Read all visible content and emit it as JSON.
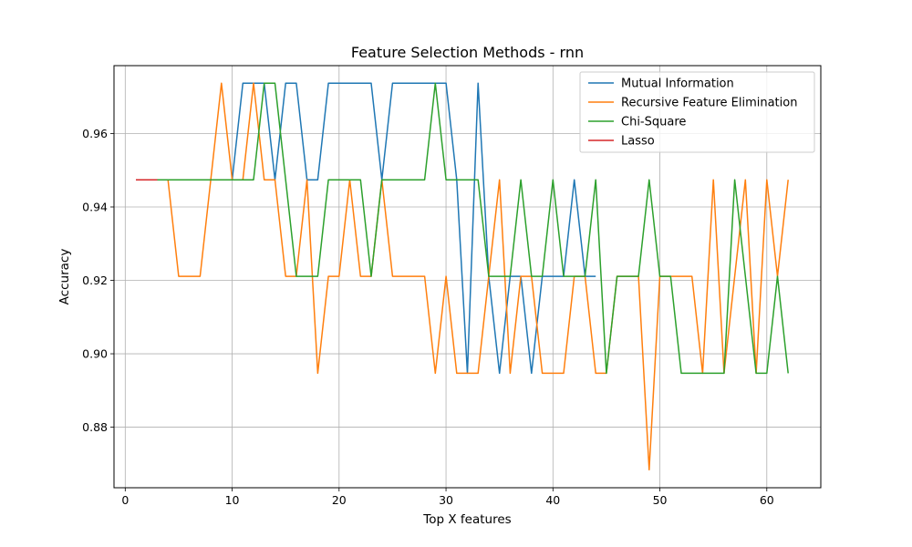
{
  "chart_data": {
    "type": "line",
    "title": "Feature Selection Methods - rnn",
    "xlabel": "Top X features",
    "ylabel": "Accuracy",
    "xlim": [
      -1.05,
      65.05
    ],
    "ylim": [
      0.8635,
      0.9785
    ],
    "xticks": [
      0,
      10,
      20,
      30,
      40,
      50,
      60
    ],
    "xtick_labels": [
      "0",
      "10",
      "20",
      "30",
      "40",
      "50",
      "60"
    ],
    "yticks": [
      0.88,
      0.9,
      0.92,
      0.94,
      0.96
    ],
    "ytick_labels": [
      "0.88",
      "0.90",
      "0.92",
      "0.94",
      "0.96"
    ],
    "grid": true,
    "legend_position": "top-right",
    "series": [
      {
        "name": "Mutual Information",
        "color": "#1f77b4",
        "x": [
          1,
          2,
          3,
          4,
          5,
          6,
          7,
          8,
          9,
          10,
          11,
          12,
          13,
          14,
          15,
          16,
          17,
          18,
          19,
          20,
          21,
          22,
          23,
          24,
          25,
          26,
          27,
          28,
          29,
          30,
          31,
          32,
          33,
          34,
          35,
          36,
          37,
          38,
          39,
          40,
          41,
          42,
          43,
          44
        ],
        "y": [
          0.9474,
          0.9474,
          0.9474,
          0.9474,
          0.9474,
          0.9474,
          0.9474,
          0.9474,
          0.9474,
          0.9474,
          0.9737,
          0.9737,
          0.9737,
          0.9474,
          0.9737,
          0.9737,
          0.9474,
          0.9474,
          0.9737,
          0.9737,
          0.9737,
          0.9737,
          0.9737,
          0.9474,
          0.9737,
          0.9737,
          0.9737,
          0.9737,
          0.9737,
          0.9737,
          0.9474,
          0.8947,
          0.9737,
          0.9211,
          0.8947,
          0.9211,
          0.9211,
          0.8947,
          0.9211,
          0.9211,
          0.9211,
          0.9474,
          0.9211,
          0.9211
        ]
      },
      {
        "name": "Recursive Feature Elimination",
        "color": "#ff7f0e",
        "x": [
          1,
          2,
          3,
          4,
          5,
          6,
          7,
          8,
          9,
          10,
          11,
          12,
          13,
          14,
          15,
          16,
          17,
          18,
          19,
          20,
          21,
          22,
          23,
          24,
          25,
          26,
          27,
          28,
          29,
          30,
          31,
          32,
          33,
          34,
          35,
          36,
          37,
          38,
          39,
          40,
          41,
          42,
          43,
          44,
          45,
          46,
          47,
          48,
          49,
          50,
          51,
          52,
          53,
          54,
          55,
          56,
          57,
          58,
          59,
          60,
          61,
          62
        ],
        "y": [
          0.9474,
          0.9474,
          0.9474,
          0.9474,
          0.9211,
          0.9211,
          0.9211,
          0.9474,
          0.9737,
          0.9474,
          0.9474,
          0.9737,
          0.9474,
          0.9474,
          0.9211,
          0.9211,
          0.9474,
          0.8947,
          0.9211,
          0.9211,
          0.9474,
          0.9211,
          0.9211,
          0.9474,
          0.9211,
          0.9211,
          0.9211,
          0.9211,
          0.8947,
          0.9211,
          0.8947,
          0.8947,
          0.8947,
          0.9211,
          0.9474,
          0.8947,
          0.9211,
          0.9211,
          0.8947,
          0.8947,
          0.8947,
          0.9211,
          0.9211,
          0.8947,
          0.8947,
          0.9211,
          0.9211,
          0.9211,
          0.8684,
          0.9211,
          0.9211,
          0.9211,
          0.9211,
          0.8947,
          0.9474,
          0.8947,
          0.9211,
          0.9474,
          0.8947,
          0.9474,
          0.9211,
          0.9474
        ]
      },
      {
        "name": "Chi-Square",
        "color": "#2ca02c",
        "x": [
          1,
          2,
          3,
          4,
          5,
          6,
          7,
          8,
          9,
          10,
          11,
          12,
          13,
          14,
          15,
          16,
          17,
          18,
          19,
          20,
          21,
          22,
          23,
          24,
          25,
          26,
          27,
          28,
          29,
          30,
          31,
          32,
          33,
          34,
          35,
          36,
          37,
          38,
          39,
          40,
          41,
          42,
          43,
          44,
          45,
          46,
          47,
          48,
          49,
          50,
          51,
          52,
          53,
          54,
          55,
          56,
          57,
          58,
          59,
          60,
          61,
          62
        ],
        "y": [
          0.9474,
          0.9474,
          0.9474,
          0.9474,
          0.9474,
          0.9474,
          0.9474,
          0.9474,
          0.9474,
          0.9474,
          0.9474,
          0.9474,
          0.9737,
          0.9737,
          0.9474,
          0.9211,
          0.9211,
          0.9211,
          0.9474,
          0.9474,
          0.9474,
          0.9474,
          0.9211,
          0.9474,
          0.9474,
          0.9474,
          0.9474,
          0.9474,
          0.9737,
          0.9474,
          0.9474,
          0.9474,
          0.9474,
          0.9211,
          0.9211,
          0.9211,
          0.9474,
          0.9211,
          0.9211,
          0.9474,
          0.9211,
          0.9211,
          0.9211,
          0.9474,
          0.8947,
          0.9211,
          0.9211,
          0.9211,
          0.9474,
          0.9211,
          0.9211,
          0.8947,
          0.8947,
          0.8947,
          0.8947,
          0.8947,
          0.9474,
          0.9211,
          0.8947,
          0.8947,
          0.9211,
          0.8947
        ]
      },
      {
        "name": "Lasso",
        "color": "#d62728",
        "x": [
          1,
          2,
          3
        ],
        "y": [
          0.9474,
          0.9474,
          0.9474
        ]
      }
    ]
  }
}
